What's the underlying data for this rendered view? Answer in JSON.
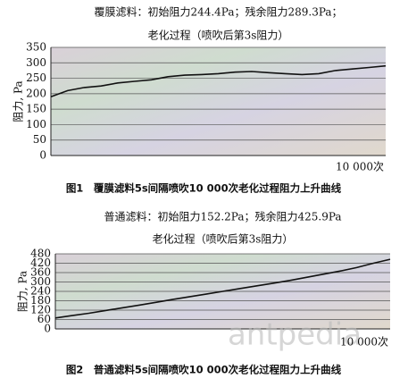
{
  "chart_data": [
    {
      "type": "line",
      "title": "覆膜滤料：初始阻力244.4Pa；残余阻力289.3Pa；",
      "subtitle": "老化过程（喷吹后第3s阻力）",
      "y_label": "阻力, Pa",
      "x_label": "10 000次",
      "caption": "图1　覆膜滤料5s间隔喷吹10 000次老化过程阻力上升曲线",
      "color": "#111111",
      "values": [
        190,
        210,
        220,
        225,
        235,
        240,
        245,
        255,
        260,
        262,
        265,
        270,
        272,
        268,
        265,
        262,
        265,
        275,
        280,
        285,
        290
      ],
      "ylim": [
        0,
        350
      ],
      "yticks": [
        0,
        50,
        100,
        150,
        200,
        250,
        300,
        350
      ],
      "grid": true
    },
    {
      "type": "line",
      "title": "普通滤料：初始阻力152.2Pa；残余阻力425.9Pa",
      "subtitle": "老化过程（喷吹后第3s阻力）",
      "y_label": "阻力, Pa",
      "x_label": "10 000次",
      "caption": "图2　普通滤料5s间隔喷吹10 000次老化过程阻力上升曲线",
      "watermark": "antpedia",
      "color": "#111111",
      "values": [
        70,
        85,
        100,
        118,
        135,
        152,
        170,
        188,
        205,
        222,
        240,
        258,
        275,
        292,
        310,
        330,
        350,
        370,
        392,
        420,
        445
      ],
      "ylim": [
        0,
        480
      ],
      "yticks": [
        0,
        60,
        120,
        180,
        240,
        300,
        360,
        420,
        480
      ],
      "grid": true
    }
  ]
}
